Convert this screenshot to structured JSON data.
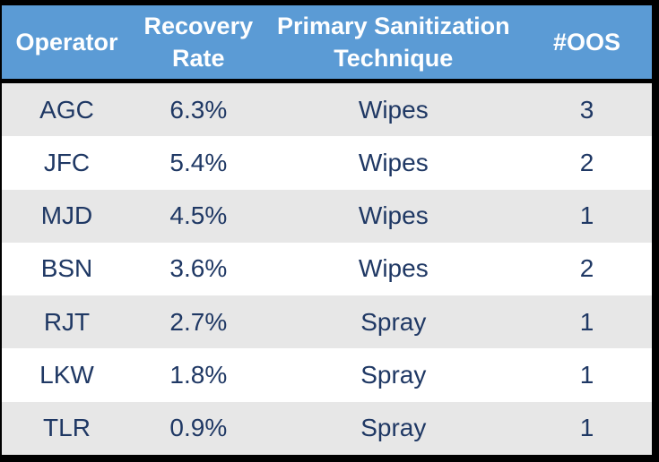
{
  "table": {
    "headers": [
      "Operator",
      "Recovery Rate",
      "Primary Sanitization Technique",
      "#OOS"
    ],
    "rows": [
      [
        "AGC",
        "6.3%",
        "Wipes",
        "3"
      ],
      [
        "JFC",
        "5.4%",
        "Wipes",
        "2"
      ],
      [
        "MJD",
        "4.5%",
        "Wipes",
        "1"
      ],
      [
        "BSN",
        "3.6%",
        "Wipes",
        "2"
      ],
      [
        "RJT",
        "2.7%",
        "Spray",
        "1"
      ],
      [
        "LKW",
        "1.8%",
        "Spray",
        "1"
      ],
      [
        "TLR",
        "0.9%",
        "Spray",
        "1"
      ]
    ],
    "colors": {
      "header_bg": "#5B9BD5",
      "header_text": "#FFFFFF",
      "body_text": "#1F3864",
      "row_banded_bg": "#E7E7E7",
      "row_plain_bg": "#FFFFFF",
      "frame_border": "#000000"
    }
  },
  "chart_data": {
    "type": "table",
    "title": "",
    "columns": [
      "Operator",
      "Recovery Rate",
      "Primary Sanitization Technique",
      "#OOS"
    ],
    "rows": [
      {
        "operator": "AGC",
        "recovery_rate": "6.3%",
        "primary_sanitization_technique": "Wipes",
        "oos_count": 3
      },
      {
        "operator": "JFC",
        "recovery_rate": "5.4%",
        "primary_sanitization_technique": "Wipes",
        "oos_count": 2
      },
      {
        "operator": "MJD",
        "recovery_rate": "4.5%",
        "primary_sanitization_technique": "Wipes",
        "oos_count": 1
      },
      {
        "operator": "BSN",
        "recovery_rate": "3.6%",
        "primary_sanitization_technique": "Wipes",
        "oos_count": 2
      },
      {
        "operator": "RJT",
        "recovery_rate": "2.7%",
        "primary_sanitization_technique": "Spray",
        "oos_count": 1
      },
      {
        "operator": "LKW",
        "recovery_rate": "1.8%",
        "primary_sanitization_technique": "Spray",
        "oos_count": 1
      },
      {
        "operator": "TLR",
        "recovery_rate": "0.9%",
        "primary_sanitization_technique": "Spray",
        "oos_count": 1
      }
    ],
    "layout": {
      "header_style": "blue-band",
      "row_banding": "alternating gray/white",
      "grid": "off",
      "outer_border": "thick black"
    }
  }
}
